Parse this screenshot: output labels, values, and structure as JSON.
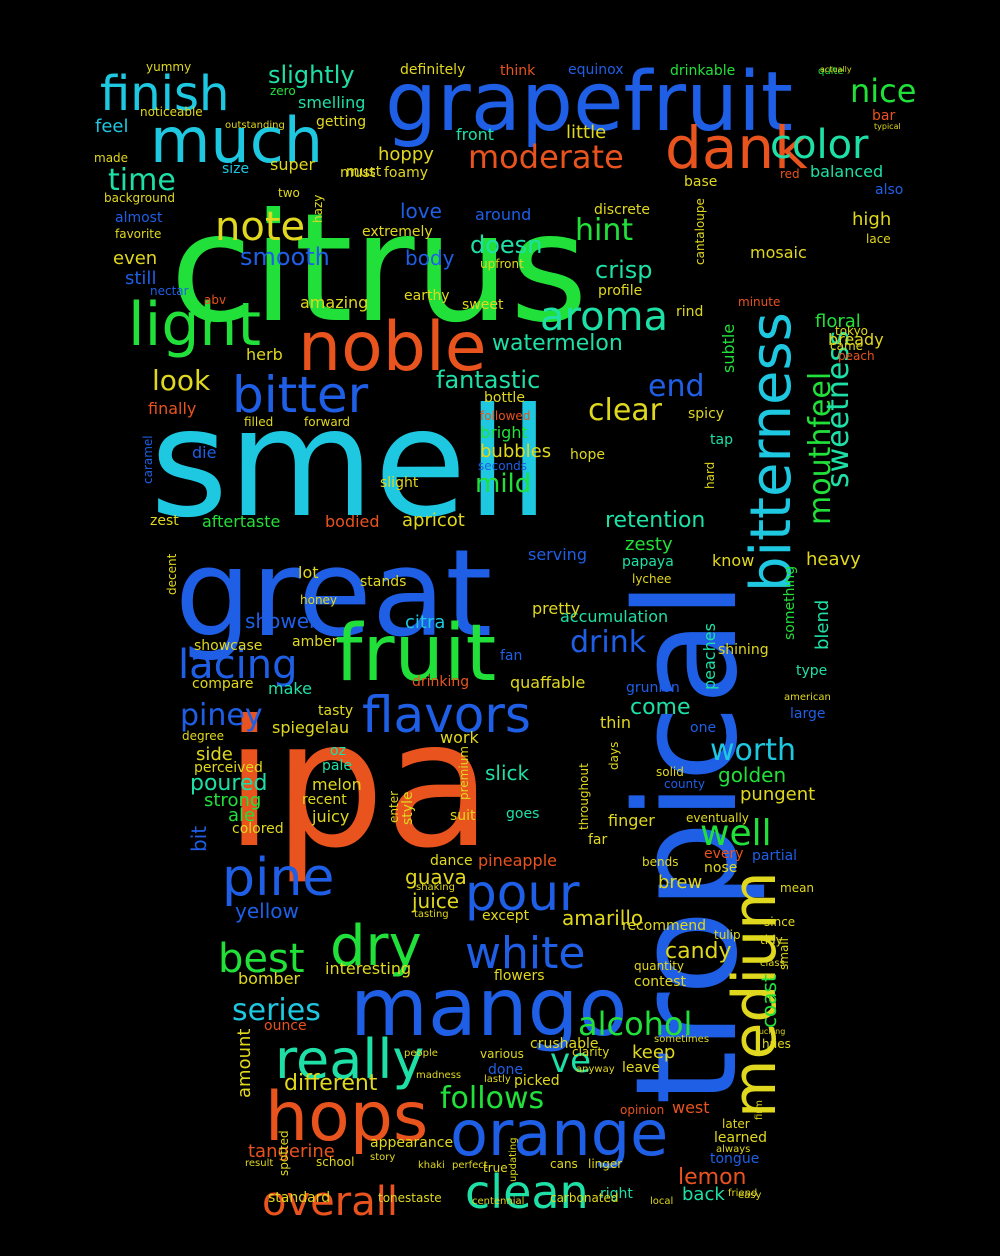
{
  "colors": {
    "background": "#000000",
    "green": "#22e03a",
    "blue": "#1f5fe6",
    "orange": "#e8531e",
    "cyan": "#1ec8e0",
    "yellow": "#e0d81e",
    "teal": "#1ee0a6",
    "lime": "#7be01e",
    "violet": "#3a2ae8"
  },
  "words": [
    "citrus",
    "smell",
    "tropical",
    "ipa",
    "great",
    "grapefruit",
    "fruit",
    "mango",
    "much",
    "noble",
    "finish",
    "dank",
    "bitterness",
    "medium",
    "hops",
    "orange",
    "light",
    "bitter",
    "pour",
    "flavors",
    "dry",
    "really",
    "clean",
    "overall",
    "pine",
    "white",
    "best",
    "note",
    "aroma",
    "mouthfeel",
    "color",
    "nice",
    "time",
    "moderate",
    "lacing",
    "sweetness",
    "well",
    "alcohol",
    "series",
    "piney",
    "drink",
    "clear",
    "end",
    "hint",
    "worth",
    "smooth",
    "look",
    "fantastic",
    "slightly",
    "doesn",
    "watermelon",
    "retention",
    "follows",
    "mild",
    "ve",
    "tangerine",
    "different",
    "crisp",
    "lemon",
    "yellow",
    "bubbles",
    "juice",
    "guava",
    "candy",
    "amarillo",
    "pineapple",
    "slick",
    "golden",
    "pungent",
    "apricot",
    "body",
    "love",
    "feel",
    "balanced",
    "high",
    "floral",
    "bready",
    "aftertaste",
    "shower",
    "citra",
    "accumulation",
    "papaya",
    "lychee",
    "zesty",
    "peaches",
    "blend",
    "coast",
    "back",
    "opinion",
    "west",
    "right",
    "come",
    "amount",
    "make",
    "poured",
    "strong",
    "melon",
    "juicy",
    "oz",
    "pale",
    "side",
    "degree",
    "spiegelau",
    "compare",
    "drinkable",
    "definitely",
    "think",
    "equinox",
    "quite",
    "actually",
    "yummy",
    "zero",
    "smelling",
    "getting",
    "noticeable",
    "outstanding",
    "front",
    "little",
    "hoppy",
    "super",
    "must",
    "foamy",
    "size",
    "made",
    "background",
    "favorite",
    "almost",
    "even",
    "still",
    "nectar",
    "abv",
    "herb",
    "amazing",
    "finally",
    "filled",
    "forward",
    "followed",
    "bright",
    "seconds",
    "slight",
    "earthy",
    "sweet",
    "profile",
    "upfront",
    "around",
    "extremely",
    "discrete",
    "cantaloupe",
    "mosaic",
    "subtle",
    "spicy",
    "tap",
    "hard",
    "minute",
    "rind",
    "tokyo",
    "came",
    "peach",
    "lace",
    "also",
    "red",
    "bar",
    "typical",
    "base",
    "hope",
    "caramel",
    "zest",
    "bodied",
    "decent",
    "lot",
    "honey",
    "stands",
    "pretty",
    "serving",
    "fan",
    "drinking",
    "quaffable",
    "grunion",
    "thin",
    "one",
    "type",
    "large",
    "american",
    "shining",
    "heavy",
    "know",
    "something",
    "work",
    "suit",
    "style",
    "throughout",
    "days",
    "solid",
    "county",
    "finger",
    "every",
    "partial",
    "nose",
    "brew",
    "recommend",
    "quantity",
    "contest",
    "tulip",
    "flowers",
    "interesting",
    "bomber",
    "ounce",
    "shaking",
    "tasting",
    "except",
    "keep",
    "leave",
    "picked",
    "done",
    "crushable",
    "appearance",
    "story",
    "school",
    "cans",
    "linger",
    "learned",
    "tongue",
    "later",
    "standard",
    "tonestaste",
    "friend",
    "ale",
    "colored",
    "bit",
    "tasty",
    "amber",
    "showcase",
    "die",
    "hazy",
    "two",
    "bottle",
    "must",
    "dance",
    "enter",
    "premium",
    "perceived",
    "recent",
    "goes",
    "far",
    "eventually",
    "bends",
    "mean",
    "since",
    "small",
    "tidy",
    "class",
    "hues",
    "fucking",
    "sometimes",
    "clarity",
    "anyway",
    "various",
    "people",
    "madness",
    "lastly",
    "result",
    "spotted",
    "khaki",
    "perfect",
    "true",
    "updating",
    "centennial",
    "local",
    "carbonated",
    "easy",
    "always",
    "firm"
  ]
}
